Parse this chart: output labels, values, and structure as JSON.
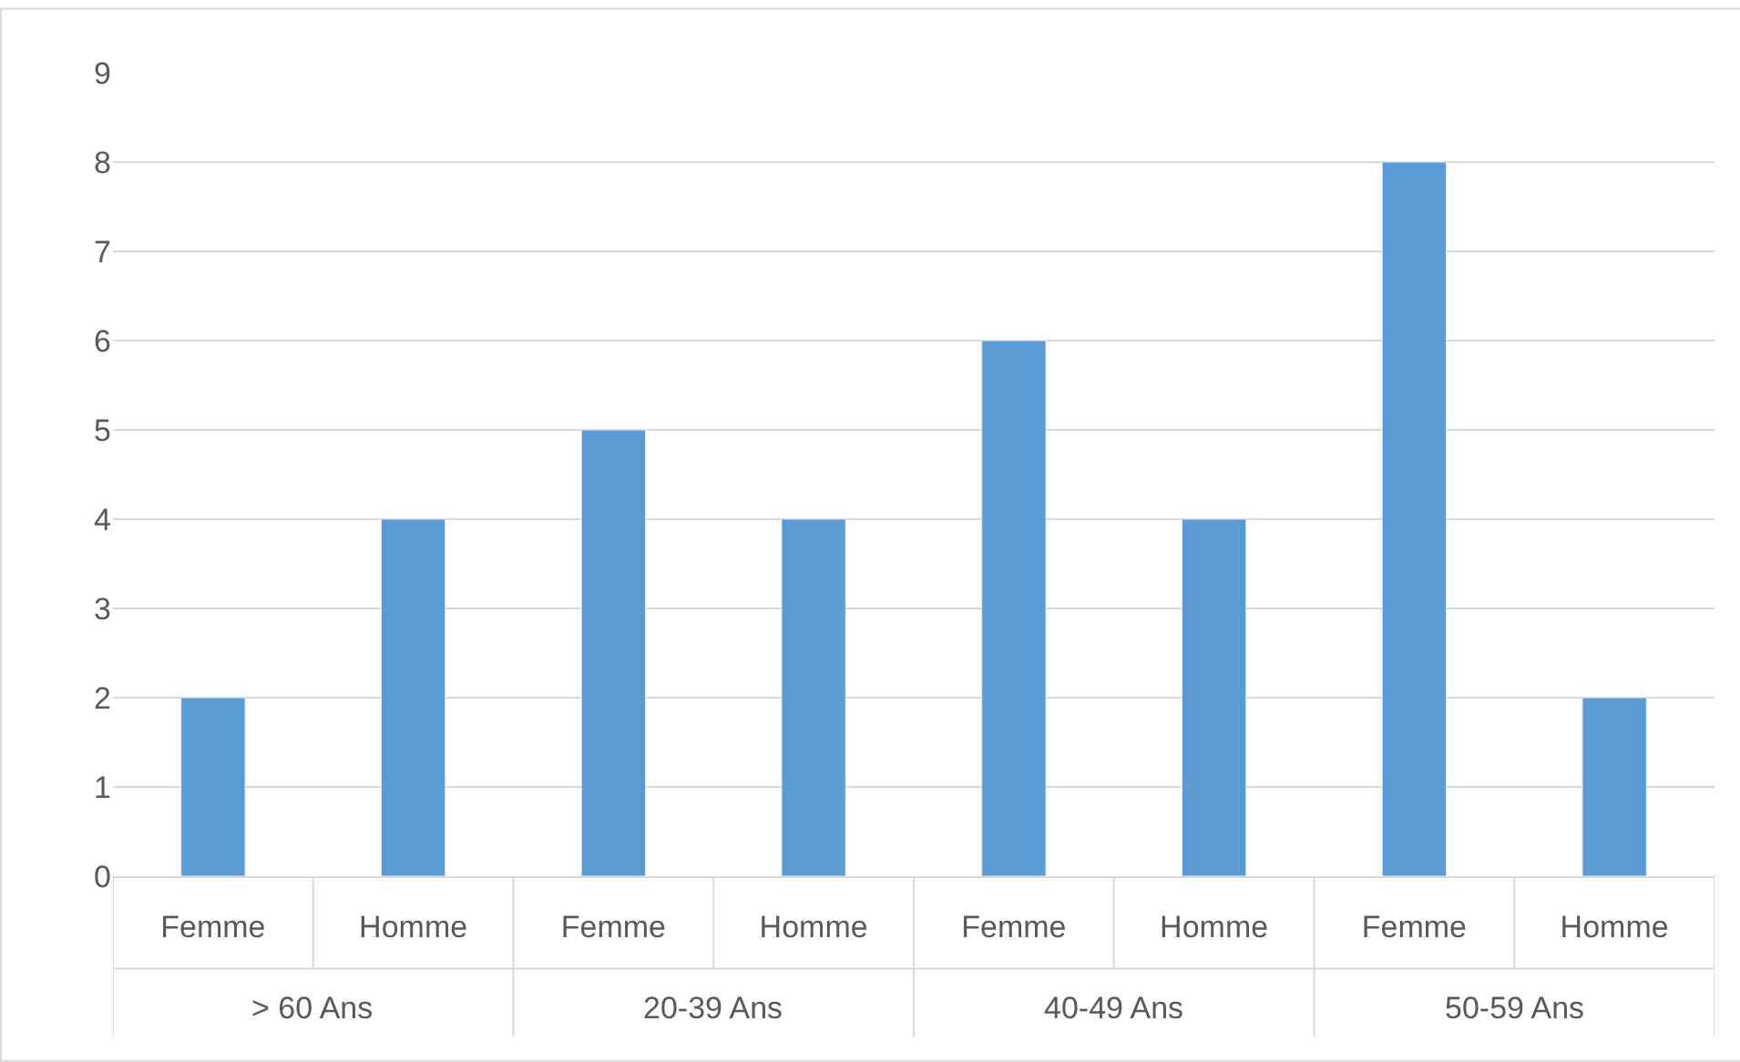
{
  "chart_data": {
    "type": "bar",
    "categories": [
      "Femme",
      "Homme",
      "Femme",
      "Homme",
      "Femme",
      "Homme",
      "Femme",
      "Homme"
    ],
    "annotations": [
      "> 60 Ans",
      "20-39 Ans",
      "40-49 Ans",
      "50-59 Ans"
    ],
    "values": [
      2,
      4,
      5,
      4,
      6,
      4,
      8,
      2
    ],
    "color": "#5b9bd5",
    "ylim": [
      0,
      9
    ],
    "yticks": [
      0,
      1,
      2,
      3,
      4,
      5,
      6,
      7,
      8,
      9
    ],
    "grid": "y"
  }
}
